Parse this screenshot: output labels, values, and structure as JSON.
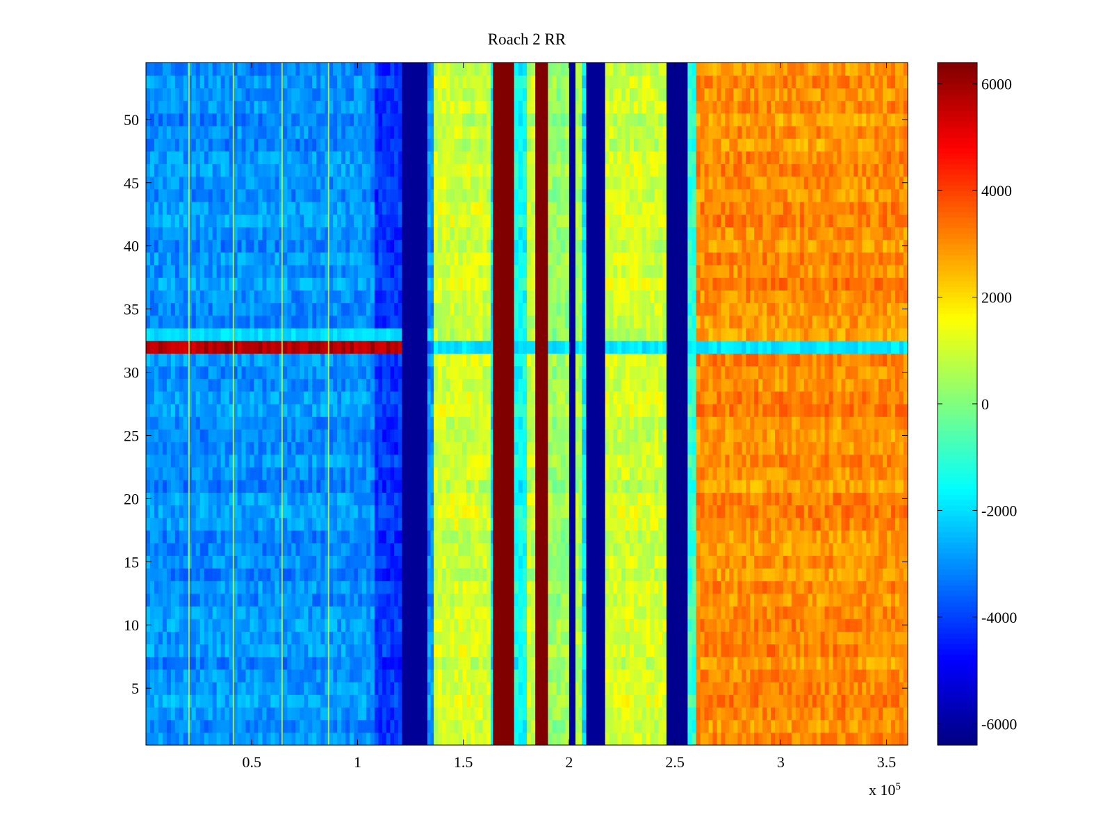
{
  "chart_data": {
    "type": "heatmap",
    "title": "Roach 2 RR",
    "xlabel": "",
    "ylabel": "",
    "x_multiplier_label": "x 10",
    "x_multiplier_exponent": "5",
    "xlim": [
      0,
      360000
    ],
    "ylim": [
      0.5,
      54.5
    ],
    "x_ticks": [
      {
        "value": 50000,
        "label": "0.5"
      },
      {
        "value": 100000,
        "label": "1"
      },
      {
        "value": 150000,
        "label": "1.5"
      },
      {
        "value": 200000,
        "label": "2"
      },
      {
        "value": 250000,
        "label": "2.5"
      },
      {
        "value": 300000,
        "label": "3"
      },
      {
        "value": 350000,
        "label": "3.5"
      }
    ],
    "y_ticks": [
      {
        "value": 5,
        "label": "5"
      },
      {
        "value": 10,
        "label": "10"
      },
      {
        "value": 15,
        "label": "15"
      },
      {
        "value": 20,
        "label": "20"
      },
      {
        "value": 25,
        "label": "25"
      },
      {
        "value": 30,
        "label": "30"
      },
      {
        "value": 35,
        "label": "35"
      },
      {
        "value": 40,
        "label": "40"
      },
      {
        "value": 45,
        "label": "45"
      },
      {
        "value": 50,
        "label": "50"
      }
    ],
    "colorbar": {
      "colormap": "jet",
      "clim": [
        -6400,
        6400
      ],
      "ticks": [
        {
          "value": 6000,
          "label": "6000"
        },
        {
          "value": 4000,
          "label": "4000"
        },
        {
          "value": 2000,
          "label": "2000"
        },
        {
          "value": 0,
          "label": "0"
        },
        {
          "value": -2000,
          "label": "-2000"
        },
        {
          "value": -4000,
          "label": "-4000"
        },
        {
          "value": -6000,
          "label": "-6000"
        }
      ]
    },
    "rows": 54,
    "column_bands": [
      {
        "x0": 0,
        "x1": 108000,
        "value": -3000
      },
      {
        "x0": 108000,
        "x1": 121000,
        "value": -4200
      },
      {
        "x0": 121000,
        "x1": 133000,
        "value": -6100
      },
      {
        "x0": 133000,
        "x1": 136000,
        "value": -3000
      },
      {
        "x0": 136000,
        "x1": 163000,
        "value": 1000
      },
      {
        "x0": 163000,
        "x1": 164000,
        "value": -2000
      },
      {
        "x0": 164000,
        "x1": 174000,
        "value": 6400
      },
      {
        "x0": 174000,
        "x1": 180000,
        "value": -1500
      },
      {
        "x0": 180000,
        "x1": 184000,
        "value": 800
      },
      {
        "x0": 184000,
        "x1": 190000,
        "value": 6400
      },
      {
        "x0": 190000,
        "x1": 200000,
        "value": 300
      },
      {
        "x0": 200000,
        "x1": 203000,
        "value": -6000
      },
      {
        "x0": 203000,
        "x1": 206000,
        "value": 500
      },
      {
        "x0": 206000,
        "x1": 208000,
        "value": -1800
      },
      {
        "x0": 208000,
        "x1": 217000,
        "value": -6100
      },
      {
        "x0": 217000,
        "x1": 246000,
        "value": 1000
      },
      {
        "x0": 246000,
        "x1": 256000,
        "value": -6200
      },
      {
        "x0": 256000,
        "x1": 260000,
        "value": -1000
      },
      {
        "x0": 260000,
        "x1": 360000,
        "value": 3000
      }
    ],
    "highlight_rows": [
      {
        "row": 32,
        "note": "left 0-121000 value ~5800, right of 136000 value ~-1800"
      },
      {
        "row": 33,
        "note": "elevated toward -1800"
      }
    ]
  }
}
